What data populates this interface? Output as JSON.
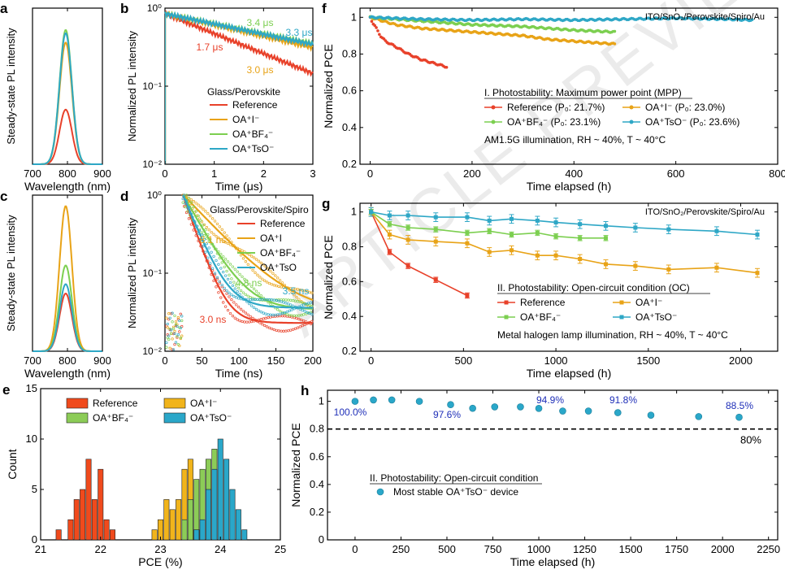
{
  "watermark": "ARTICLE PREVIEW",
  "chart_data": [
    {
      "panel": "a",
      "type": "line",
      "ylabel": "Steady-state PL intensity",
      "xlabel": "Wavelength (nm)",
      "xlim": [
        700,
        900
      ],
      "xticks": [
        700,
        800,
        900
      ],
      "series": [
        {
          "name": "Reference",
          "color": "#e8412a",
          "peak_x": 795,
          "peak_y": 0.35,
          "width": 28
        },
        {
          "name": "OA+I-",
          "color": "#e8a317",
          "peak_x": 795,
          "peak_y": 0.78,
          "width": 28
        },
        {
          "name": "OA+BF4-",
          "color": "#7ccf50",
          "peak_x": 795,
          "peak_y": 0.86,
          "width": 28
        },
        {
          "name": "OA+TsO-",
          "color": "#2ea7c6",
          "peak_x": 795,
          "peak_y": 0.84,
          "width": 28
        }
      ]
    },
    {
      "panel": "b",
      "type": "line",
      "ylabel": "Normalized PL intensity",
      "xlabel": "Time (μs)",
      "xlim": [
        0,
        3
      ],
      "ylim_log": [
        0.01,
        1
      ],
      "xticks": [
        0,
        1,
        2,
        3
      ],
      "yticks": [
        "10⁻²",
        "10⁻¹",
        "10⁰"
      ],
      "legend_title": "Glass/Perovskite",
      "legend": [
        "Reference",
        "OA⁺I⁻",
        "OA⁺BF₄⁻",
        "OA⁺TsO⁻"
      ],
      "annotations": [
        "1.7 μs",
        "3.4 μs",
        "3.3 μs",
        "3.0 μs"
      ],
      "series": [
        {
          "name": "Reference",
          "color": "#e8412a",
          "tau": 1.7
        },
        {
          "name": "OA+I-",
          "color": "#e8a317",
          "tau": 3.0
        },
        {
          "name": "OA+BF4-",
          "color": "#7ccf50",
          "tau": 3.4
        },
        {
          "name": "OA+TsO-",
          "color": "#2ea7c6",
          "tau": 3.3
        }
      ]
    },
    {
      "panel": "c",
      "type": "line",
      "ylabel": "Steady-state PL intensity",
      "xlabel": "Wavelength (nm)",
      "xlim": [
        700,
        900
      ],
      "xticks": [
        700,
        800,
        900
      ],
      "series": [
        {
          "name": "Reference",
          "color": "#e8412a",
          "peak_x": 795,
          "peak_y": 0.37,
          "width": 28
        },
        {
          "name": "OA+I-",
          "color": "#e8a317",
          "peak_x": 795,
          "peak_y": 0.93,
          "width": 28
        },
        {
          "name": "OA+BF4-",
          "color": "#7ccf50",
          "peak_x": 795,
          "peak_y": 0.55,
          "width": 28
        },
        {
          "name": "OA+TsO-",
          "color": "#2ea7c6",
          "peak_x": 795,
          "peak_y": 0.43,
          "width": 28
        }
      ]
    },
    {
      "panel": "d",
      "type": "scatter",
      "ylabel": "Normalized PL intensity",
      "xlabel": "Time (ns)",
      "xlim": [
        0,
        200
      ],
      "ylim_log": [
        0.01,
        1
      ],
      "xticks": [
        0,
        50,
        100,
        150,
        200
      ],
      "yticks": [
        "10⁻²",
        "10⁻¹",
        "10⁰"
      ],
      "legend_title": "Glass/Perovskite/Spiro",
      "legend": [
        "Reference",
        "OA⁺I",
        "OA⁺BF₄⁻",
        "OA⁺TsO"
      ],
      "annotations": [
        "8.1 ns",
        "4.8 ns",
        "3.5 ns",
        "3.0 ns"
      ],
      "series": [
        {
          "name": "Reference",
          "color": "#e8412a",
          "tau": 3.0,
          "plateau": 0.023
        },
        {
          "name": "OA+I",
          "color": "#e8a317",
          "tau": 8.1,
          "plateau": 0.03
        },
        {
          "name": "OA+BF4-",
          "color": "#7ccf50",
          "tau": 4.8,
          "plateau": 0.034
        },
        {
          "name": "OA+TsO",
          "color": "#2ea7c6",
          "tau": 3.5,
          "plateau": 0.036
        }
      ]
    },
    {
      "panel": "e",
      "type": "bar",
      "ylabel": "Count",
      "xlabel": "PCE (%)",
      "xlim": [
        21,
        25
      ],
      "ylim": [
        0,
        15
      ],
      "xticks": [
        21,
        22,
        23,
        24,
        25
      ],
      "yticks": [
        0,
        5,
        10,
        15
      ],
      "legend": [
        "Reference",
        "OA⁺I⁻",
        "OA⁺BF₄⁻",
        "OA⁺TsO⁻"
      ],
      "bin_width": 0.1,
      "series": [
        {
          "name": "Reference",
          "color": "#f04a1c",
          "bins": [
            21.3,
            21.5,
            21.6,
            21.7,
            21.8,
            21.9,
            22.0,
            22.1,
            22.2
          ],
          "counts": [
            1,
            2,
            4,
            5,
            8,
            4,
            7,
            2,
            1
          ]
        },
        {
          "name": "OA+I-",
          "color": "#f1b41b",
          "bins": [
            22.9,
            23.0,
            23.1,
            23.2,
            23.3,
            23.4,
            23.5,
            23.6
          ],
          "counts": [
            1,
            2,
            4,
            3,
            4,
            7,
            8,
            1
          ]
        },
        {
          "name": "OA+BF4-",
          "color": "#8ccc57",
          "bins": [
            23.4,
            23.5,
            23.6,
            23.7,
            23.8,
            23.9
          ],
          "counts": [
            2,
            4,
            6,
            7,
            8,
            9
          ]
        },
        {
          "name": "OA+TsO-",
          "color": "#2aa7c9",
          "bins": [
            23.6,
            23.7,
            23.8,
            23.9,
            24.0,
            24.1,
            24.2,
            24.3,
            24.4
          ],
          "counts": [
            1,
            2,
            5,
            7,
            10,
            8,
            5,
            3,
            1
          ]
        }
      ]
    },
    {
      "panel": "f",
      "type": "line",
      "ylabel": "Normalized PCE",
      "xlabel": "Time elapsed (h)",
      "xlim": [
        -20,
        800
      ],
      "ylim": [
        0.2,
        1.05
      ],
      "xticks": [
        0,
        200,
        400,
        600,
        800
      ],
      "yticks": [
        0.2,
        0.4,
        0.6,
        0.8,
        1.0
      ],
      "device": "ITO/SnO₂/Perovskite/Spiro/Au",
      "legend_title": "I. Photostability: Maximum power point (MPP)",
      "legend": [
        "Reference (P₀: 21.7%)",
        "OA⁺I⁻ (P₀: 23.0%)",
        "OA⁺BF₄⁻ (P₀: 23.1%)",
        "OA⁺TsO⁻ (P₀: 23.6%)"
      ],
      "note": "AM1.5G illumination, RH ~ 40%, T ~ 40°C",
      "series": [
        {
          "name": "Reference",
          "color": "#e8412a",
          "x": [
            0,
            5,
            10,
            20,
            30,
            50,
            75,
            100,
            125,
            150
          ],
          "y": [
            1.0,
            0.97,
            0.95,
            0.9,
            0.87,
            0.84,
            0.8,
            0.77,
            0.75,
            0.73
          ]
        },
        {
          "name": "OA+I-",
          "color": "#e8a317",
          "x": [
            0,
            50,
            100,
            150,
            200,
            250,
            300,
            350,
            400,
            450,
            480
          ],
          "y": [
            1.0,
            0.96,
            0.94,
            0.93,
            0.92,
            0.91,
            0.9,
            0.88,
            0.87,
            0.86,
            0.855
          ]
        },
        {
          "name": "OA+BF4-",
          "color": "#7ccf50",
          "x": [
            0,
            100,
            200,
            300,
            400,
            480
          ],
          "y": [
            1.0,
            0.98,
            0.96,
            0.95,
            0.93,
            0.92
          ]
        },
        {
          "name": "OA+TsO-",
          "color": "#2ea7c6",
          "x": [
            0,
            100,
            200,
            300,
            400,
            500,
            600,
            700,
            750
          ],
          "y": [
            1.0,
            0.99,
            0.985,
            0.99,
            0.985,
            0.99,
            0.995,
            0.99,
            0.985
          ]
        }
      ]
    },
    {
      "panel": "g",
      "type": "line",
      "ylabel": "Normalized PCE",
      "xlabel": "Time elapsed (h)",
      "xlim": [
        -60,
        2200
      ],
      "ylim": [
        0.2,
        1.05
      ],
      "xticks": [
        0,
        500,
        1000,
        1500,
        2000
      ],
      "yticks": [
        0.2,
        0.4,
        0.6,
        0.8,
        1.0
      ],
      "device": "ITO/SnO₂/Perovskite/Spiro/Au",
      "legend_title": "II. Photostability: Open-circuit condition (OC)",
      "legend": [
        "Reference",
        "OA⁺I⁻",
        "OA⁺BF₄⁻",
        "OA⁺TsO⁻"
      ],
      "note": "Metal halogen lamp illumination, RH ~ 40%, T ~ 40°C",
      "series": [
        {
          "name": "Reference",
          "color": "#e8412a",
          "x": [
            0,
            100,
            200,
            350,
            520
          ],
          "y": [
            1.0,
            0.77,
            0.69,
            0.61,
            0.52
          ],
          "err": 0.015
        },
        {
          "name": "OA+I-",
          "color": "#e8a317",
          "x": [
            0,
            100,
            200,
            350,
            520,
            640,
            760,
            900,
            1000,
            1130,
            1270,
            1430,
            1610,
            1870,
            2090
          ],
          "y": [
            1.0,
            0.87,
            0.84,
            0.83,
            0.82,
            0.77,
            0.78,
            0.75,
            0.75,
            0.73,
            0.7,
            0.69,
            0.67,
            0.68,
            0.65
          ],
          "err": 0.025
        },
        {
          "name": "OA+BF4-",
          "color": "#7ccf50",
          "x": [
            0,
            100,
            200,
            350,
            520,
            640,
            760,
            900,
            1000,
            1130,
            1270
          ],
          "y": [
            1.0,
            0.93,
            0.91,
            0.9,
            0.88,
            0.89,
            0.87,
            0.88,
            0.86,
            0.85,
            0.85
          ],
          "err": 0.015
        },
        {
          "name": "OA+TsO-",
          "color": "#2ea7c6",
          "x": [
            0,
            100,
            200,
            350,
            520,
            640,
            760,
            900,
            1000,
            1130,
            1270,
            1430,
            1610,
            1870,
            2090
          ],
          "y": [
            1.0,
            0.98,
            0.98,
            0.97,
            0.97,
            0.95,
            0.96,
            0.95,
            0.94,
            0.93,
            0.92,
            0.91,
            0.9,
            0.89,
            0.87
          ],
          "err": 0.025
        }
      ]
    },
    {
      "panel": "h",
      "type": "scatter",
      "ylabel": "Normalized PCE",
      "xlabel": "Time elapsed (h)",
      "xlim": [
        -150,
        2300
      ],
      "ylim": [
        0.0,
        1.08
      ],
      "xticks": [
        0,
        250,
        500,
        750,
        1000,
        1250,
        1500,
        1750,
        2000,
        2250
      ],
      "yticks": [
        0.0,
        0.2,
        0.4,
        0.6,
        0.8,
        1.0
      ],
      "reference_line": 0.8,
      "reference_label": "80%",
      "legend_title": "II. Photostability: Open-circuit condition",
      "legend": [
        "Most stable OA⁺TsO⁻ device"
      ],
      "annotations": [
        "100.0%",
        "97.6%",
        "94.9%",
        "91.8%",
        "88.5%"
      ],
      "series": [
        {
          "name": "Most stable OA+TsO- device",
          "color": "#2aa7c9",
          "x": [
            0,
            100,
            200,
            350,
            520,
            640,
            760,
            900,
            1000,
            1130,
            1270,
            1430,
            1610,
            1870,
            2090
          ],
          "y": [
            1.0,
            1.01,
            1.01,
            1.0,
            0.976,
            0.95,
            0.96,
            0.96,
            0.949,
            0.93,
            0.93,
            0.918,
            0.9,
            0.89,
            0.885
          ]
        }
      ]
    }
  ]
}
